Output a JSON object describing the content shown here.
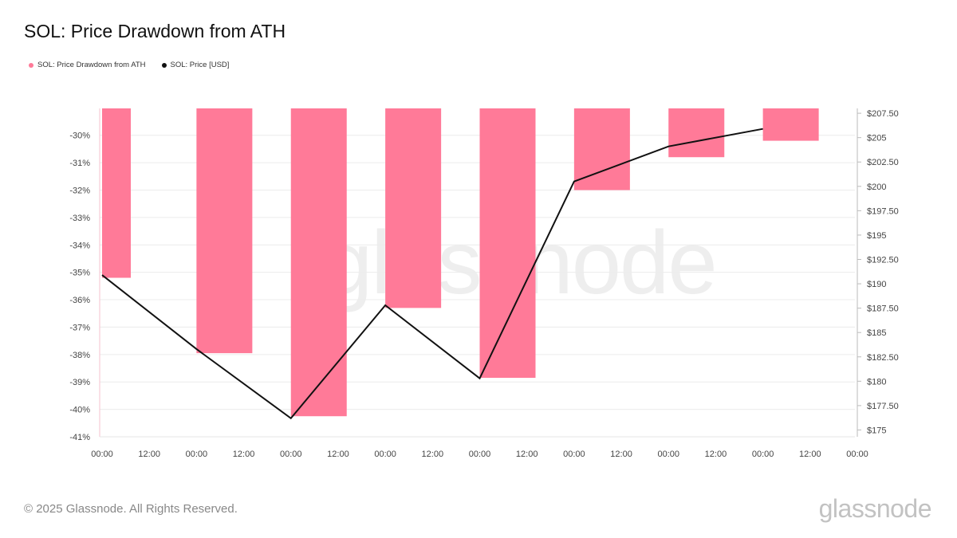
{
  "title": "SOL: Price Drawdown from ATH",
  "legend": {
    "drawdown_label": "SOL: Price Drawdown from ATH",
    "price_label": "SOL: Price [USD]"
  },
  "watermark": "glassnode",
  "footer": {
    "copyright": "© 2025 Glassnode. All Rights Reserved.",
    "logo": "glassnode"
  },
  "colors": {
    "bar": "#ff7a98",
    "line": "#111111",
    "grid": "#ececec",
    "axis_text": "#444444"
  },
  "chart_data": {
    "type": "bar+line",
    "x_tick_labels": [
      "00:00",
      "12:00",
      "00:00",
      "12:00",
      "00:00",
      "12:00",
      "00:00",
      "12:00",
      "00:00",
      "12:00",
      "00:00",
      "12:00",
      "00:00",
      "12:00",
      "00:00",
      "12:00",
      "00:00"
    ],
    "y_left": {
      "ticks": [
        -30,
        -31,
        -32,
        -33,
        -34,
        -35,
        -36,
        -37,
        -38,
        -39,
        -40,
        -41
      ],
      "tick_labels": [
        "-30%",
        "-31%",
        "-32%",
        "-33%",
        "-34%",
        "-35%",
        "-36%",
        "-37%",
        "-38%",
        "-39%",
        "-40%",
        "-41%"
      ],
      "range": [
        -41,
        -29.02
      ]
    },
    "y_right": {
      "ticks": [
        175,
        177.5,
        180,
        182.5,
        185,
        187.5,
        190,
        192.5,
        195,
        197.5,
        200,
        202.5,
        205,
        207.5
      ],
      "tick_labels": [
        "$175",
        "$177.50",
        "$180",
        "$182.50",
        "$185",
        "$187.50",
        "$190",
        "$192.50",
        "$195",
        "$197.50",
        "$200",
        "$202.50",
        "$205",
        "$207.50"
      ],
      "range": [
        174.3,
        208
      ]
    },
    "series": [
      {
        "name": "SOL: Price Drawdown from ATH",
        "kind": "bar",
        "x": [
          0,
          2,
          4,
          6,
          8,
          10,
          12,
          14
        ],
        "values": [
          -35.2,
          -37.95,
          -40.25,
          -36.3,
          -38.85,
          -32.0,
          -30.8,
          -30.2
        ]
      },
      {
        "name": "SOL: Price [USD]",
        "kind": "line",
        "x": [
          0,
          2,
          4,
          6,
          8,
          10,
          12,
          14
        ],
        "values": [
          190.9,
          183.3,
          176.2,
          187.8,
          180.3,
          200.5,
          204.1,
          205.9
        ]
      }
    ],
    "grid": true,
    "legend_position": "top-left"
  }
}
